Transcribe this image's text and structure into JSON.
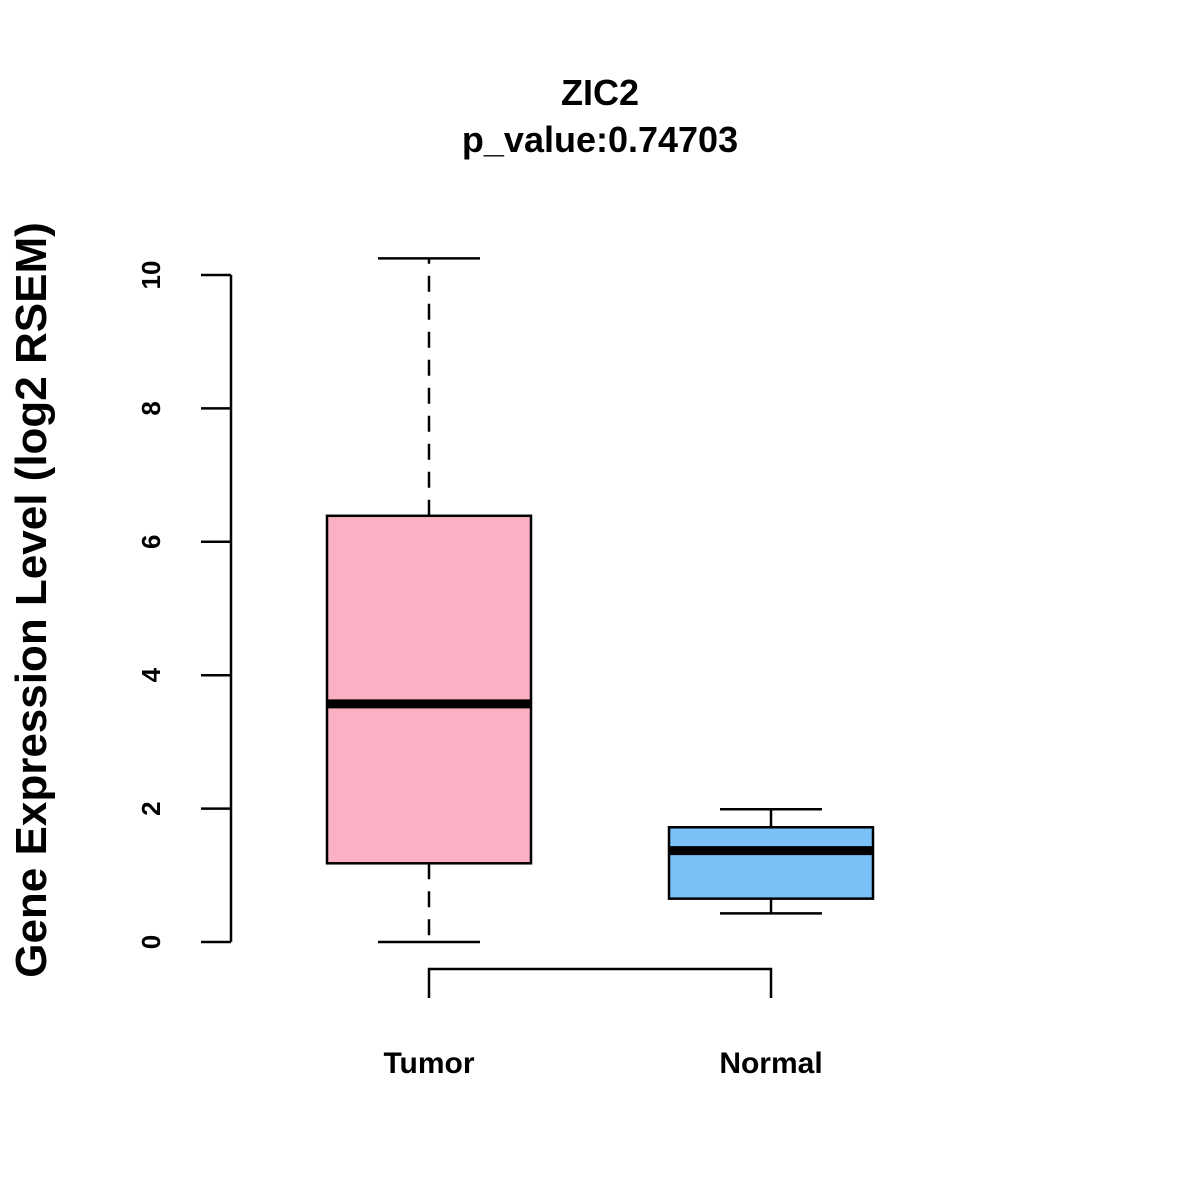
{
  "chart_data": {
    "type": "box",
    "title": "ZIC2",
    "subtitle": "p_value:0.74703",
    "xlabel": "",
    "ylabel": "Gene Expression Level (log2 RSEM)",
    "ylim": [
      0,
      10
    ],
    "yticks": [
      0,
      2,
      4,
      6,
      8,
      10
    ],
    "categories": [
      "Tumor",
      "Normal"
    ],
    "boxes": [
      {
        "name": "Tumor",
        "min": 0.0,
        "q1": 1.18,
        "median": 3.57,
        "q3": 6.39,
        "max": 10.25,
        "color": "#FBB1C3"
      },
      {
        "name": "Normal",
        "min": 0.43,
        "q1": 0.65,
        "median": 1.37,
        "q3": 1.72,
        "max": 1.99,
        "color": "#7AC1F8"
      }
    ],
    "comparison_bracket": {
      "from": "Tumor",
      "to": "Normal"
    },
    "grid": false,
    "legend": "none"
  }
}
